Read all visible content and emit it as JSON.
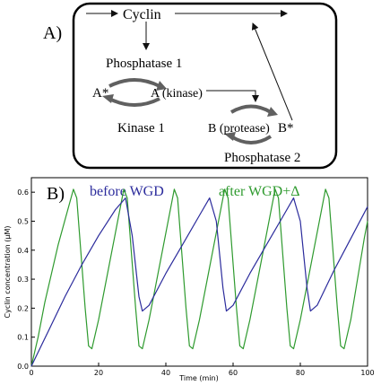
{
  "panel_a": {
    "label": "A)",
    "cyclin": "Cyclin",
    "phosphatase1": "Phosphatase 1",
    "a_star": "A*",
    "a_kinase": "A (kinase)",
    "kinase1": "Kinase 1",
    "b_protease": "B (protease)",
    "b_star": "B*",
    "phosphatase2": "Phosphatase 2"
  },
  "panel_b": {
    "label": "B)",
    "legend_before": "before WGD",
    "legend_after": "after WGD+Δ",
    "colors": {
      "before": "#2b2b9c",
      "after": "#2e9a2e"
    }
  },
  "chart_data": {
    "type": "line",
    "xlabel": "Time (min)",
    "ylabel": "Cyclin concentration (μM)",
    "xlim": [
      0,
      100
    ],
    "ylim": [
      0,
      0.65
    ],
    "xticks": [
      "0",
      "20",
      "40",
      "60",
      "80",
      "100"
    ],
    "yticks": [
      "0.0",
      "0.1",
      "0.2",
      "0.3",
      "0.4",
      "0.5",
      "0.6"
    ],
    "series": [
      {
        "name": "before WGD",
        "x": [
          0,
          5,
          10,
          15,
          20,
          25,
          28,
          30,
          32,
          33,
          35,
          40,
          45,
          50,
          53,
          55,
          57,
          58,
          60,
          65,
          70,
          75,
          78,
          80,
          82,
          83,
          85,
          90,
          95,
          100
        ],
        "y": [
          0.0,
          0.12,
          0.24,
          0.35,
          0.45,
          0.54,
          0.58,
          0.45,
          0.24,
          0.19,
          0.21,
          0.32,
          0.42,
          0.52,
          0.58,
          0.5,
          0.27,
          0.19,
          0.21,
          0.32,
          0.42,
          0.52,
          0.58,
          0.5,
          0.27,
          0.19,
          0.21,
          0.33,
          0.44,
          0.55
        ]
      },
      {
        "name": "after WGD+Δ",
        "x": [
          0,
          2,
          4,
          8,
          12.5,
          13.5,
          16,
          17,
          18,
          20,
          24,
          27.5,
          28.5,
          31,
          32,
          33,
          35,
          39,
          42.5,
          43.5,
          46,
          47,
          48,
          50,
          54,
          57.5,
          58.5,
          61,
          62,
          63,
          65,
          69,
          72.5,
          73.5,
          76,
          77,
          78,
          80,
          84,
          87.5,
          88.5,
          91,
          92,
          93,
          95,
          99,
          100
        ],
        "y": [
          0.0,
          0.1,
          0.22,
          0.42,
          0.61,
          0.58,
          0.2,
          0.07,
          0.06,
          0.16,
          0.4,
          0.61,
          0.58,
          0.2,
          0.07,
          0.06,
          0.16,
          0.4,
          0.61,
          0.58,
          0.2,
          0.07,
          0.06,
          0.16,
          0.4,
          0.61,
          0.58,
          0.2,
          0.07,
          0.06,
          0.16,
          0.4,
          0.61,
          0.58,
          0.2,
          0.07,
          0.06,
          0.16,
          0.4,
          0.61,
          0.58,
          0.2,
          0.07,
          0.06,
          0.16,
          0.44,
          0.5
        ]
      }
    ]
  }
}
